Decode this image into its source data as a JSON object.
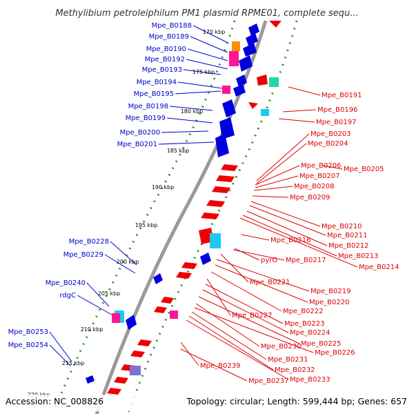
{
  "title": "Methylibium petroleiphilum PM1 plasmid RPME01, complete sequ...",
  "accession": "Accession: NC_008826",
  "summary": "Topology: circular; Length: 599,444 bp; Genes: 657",
  "colors": {
    "backbone": "#888888",
    "blue_gene": "#0000dd",
    "red_gene": "#ee0000",
    "blue_label": "#0000cc",
    "red_label": "#dd0000",
    "tick_dots": "#228b22",
    "orange": "#ff8c00",
    "magenta": "#ff1493",
    "cyan": "#1ec8f0",
    "teal": "#20d8a8",
    "purple": "#8070d0"
  },
  "ticks": [
    "170 kbp",
    "175 kbp",
    "180 kbp",
    "185 kbp",
    "190 kbp",
    "195 kbp",
    "200 kbp",
    "205 kbp",
    "210 kbp",
    "215 kbp",
    "220 kbp"
  ],
  "genes_left": [
    "Mpe_B0188",
    "Mpe_B0189",
    "Mpe_B0190",
    "Mpe_B0192",
    "Mpe_B0193",
    "Mpe_B0194",
    "Mpe_B0195",
    "Mpe_B0198",
    "Mpe_B0199",
    "Mpe_B0200",
    "Mpe_B0201",
    "Mpe_B0228",
    "Mpe_B0229",
    "Mpe_B0240",
    "rdgC",
    "Mpe_B0253",
    "Mpe_B0254"
  ],
  "genes_right": [
    "Mpe_B0191",
    "Mpe_B0196",
    "Mpe_B0197",
    "Mpe_B0203",
    "Mpe_B0204",
    "Mpe_B0206",
    "Mpe_B0205",
    "Mpe_B0207",
    "Mpe_B0208",
    "Mpe_B0209",
    "Mpe_B0210",
    "Mpe_B0211",
    "Mpe_B0216",
    "Mpe_B0212",
    "Mpe_B0213",
    "pyrG",
    "Mpe_B0217",
    "Mpe_B0214",
    "Mpe_B0221",
    "Mpe_B0219",
    "Mpe_B0220",
    "Mpe_B0222",
    "Mpe_B0227",
    "Mpe_B0223",
    "Mpe_B0224",
    "Mpe_B0225",
    "Mpe_B0230",
    "Mpe_B0226",
    "Mpe_B0231",
    "Mpe_B0239",
    "Mpe_B0232",
    "Mpe_B0237",
    "Mpe_B0233"
  ]
}
